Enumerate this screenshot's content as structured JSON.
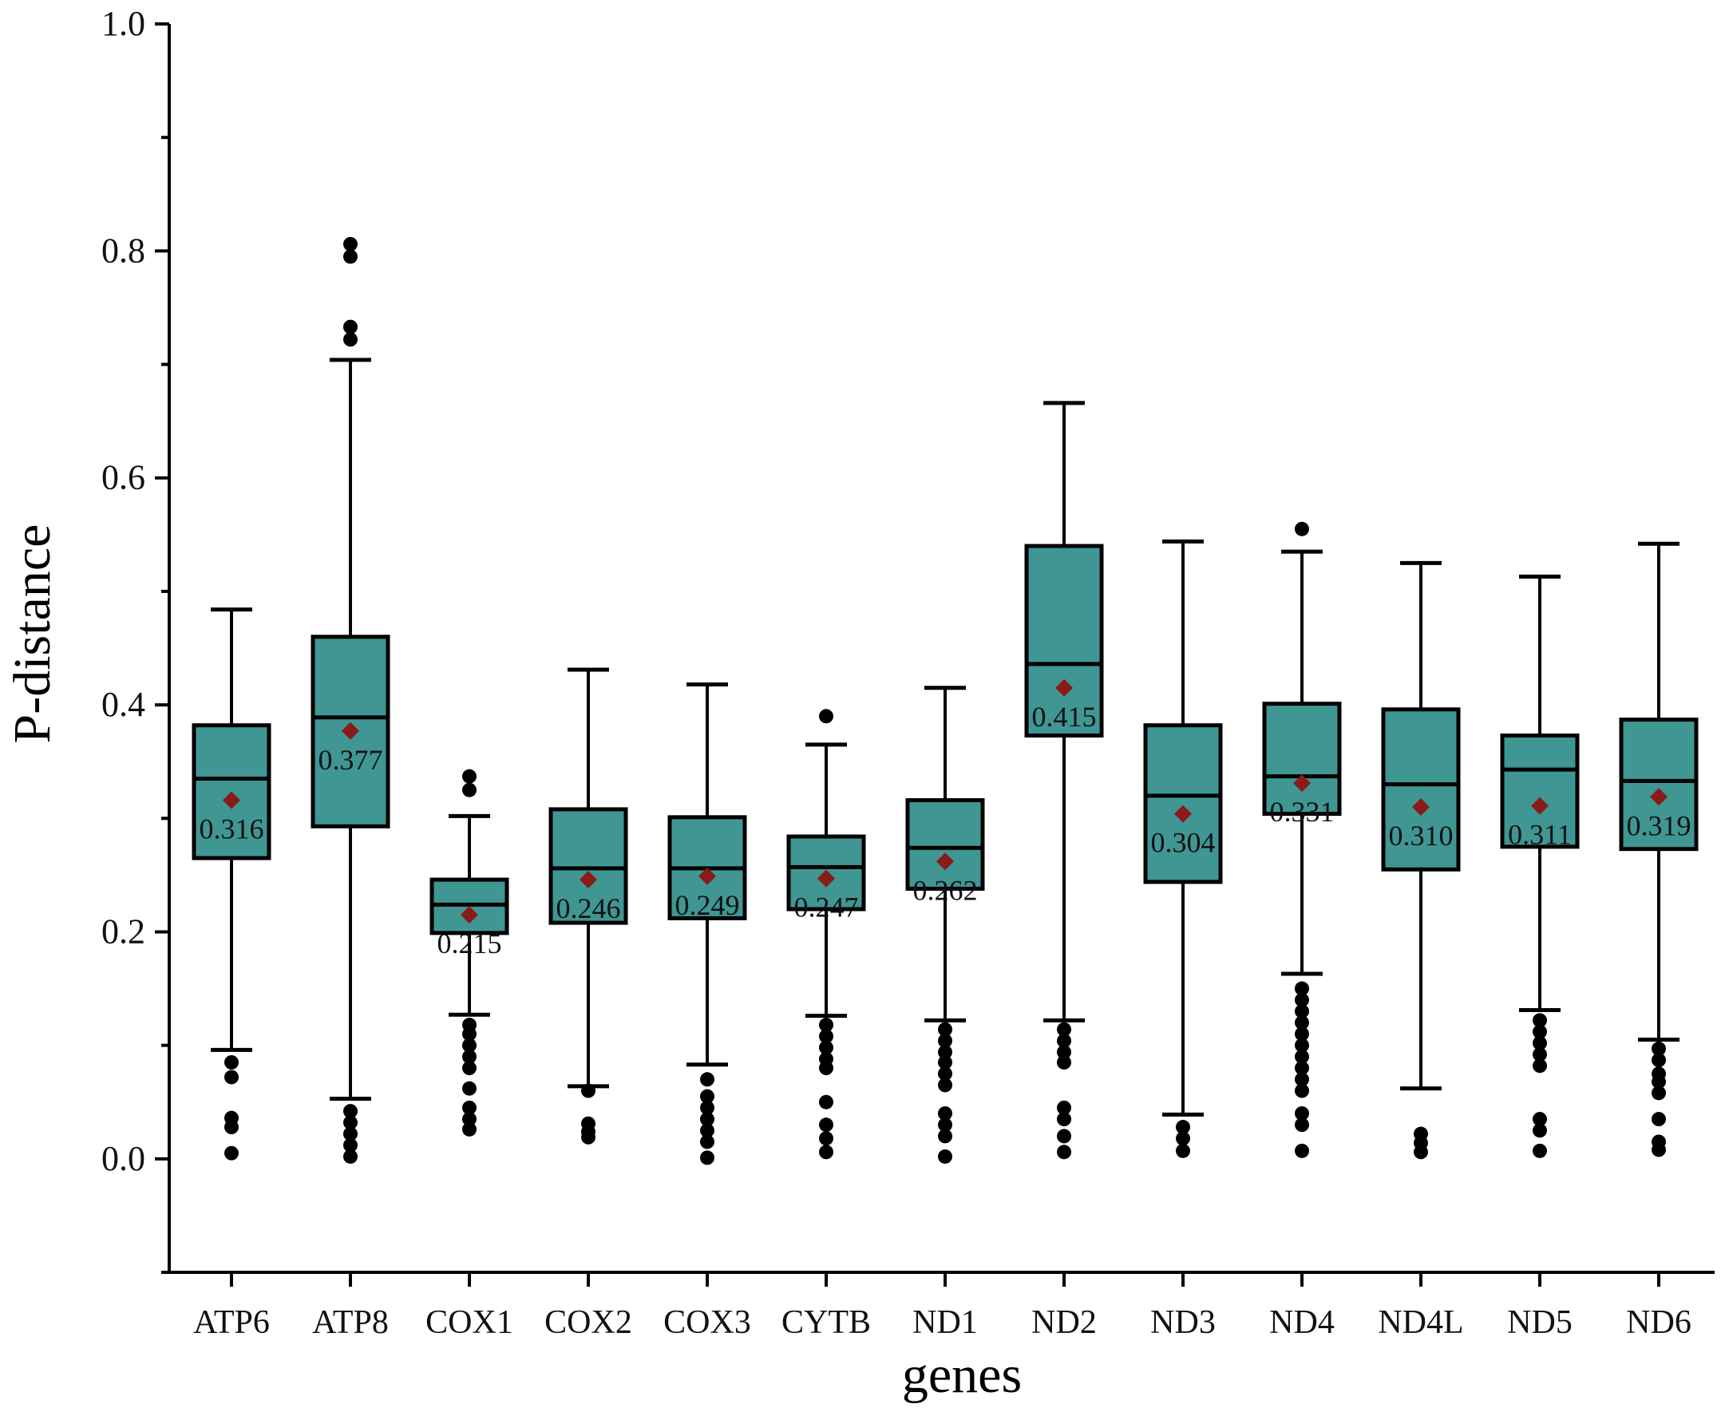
{
  "chart_data": {
    "type": "box",
    "title": "",
    "xlabel": "genes",
    "ylabel": "P-distance",
    "ylim": [
      -0.1,
      1.0
    ],
    "yticks": [
      0.0,
      0.2,
      0.4,
      0.6,
      0.8,
      1.0
    ],
    "ytick_labels": [
      "0.0",
      "0.2",
      "0.4",
      "0.6",
      "0.8",
      "1.0"
    ],
    "box_color": "#3f9693",
    "mean_color": "#8b1a1a",
    "categories": [
      "ATP6",
      "ATP8",
      "COX1",
      "COX2",
      "COX3",
      "CYTB",
      "ND1",
      "ND2",
      "ND3",
      "ND4",
      "ND4L",
      "ND5",
      "ND6"
    ],
    "boxes": [
      {
        "name": "ATP6",
        "whisker_low": 0.096,
        "q1": 0.265,
        "median": 0.335,
        "q3": 0.382,
        "whisker_high": 0.484,
        "mean": 0.316,
        "mean_label": "0.316",
        "outliers": [
          0.085,
          0.072,
          0.036,
          0.028,
          0.005
        ]
      },
      {
        "name": "ATP8",
        "whisker_low": 0.053,
        "q1": 0.293,
        "median": 0.389,
        "q3": 0.46,
        "whisker_high": 0.704,
        "mean": 0.377,
        "mean_label": "0.377",
        "outliers": [
          0.806,
          0.795,
          0.733,
          0.722,
          0.042,
          0.032,
          0.022,
          0.012,
          0.002
        ]
      },
      {
        "name": "COX1",
        "whisker_low": 0.127,
        "q1": 0.199,
        "median": 0.224,
        "q3": 0.246,
        "whisker_high": 0.302,
        "mean": 0.215,
        "mean_label": "0.215",
        "outliers": [
          0.337,
          0.325,
          0.118,
          0.11,
          0.1,
          0.09,
          0.08,
          0.062,
          0.045,
          0.035,
          0.026
        ]
      },
      {
        "name": "COX2",
        "whisker_low": 0.064,
        "q1": 0.208,
        "median": 0.256,
        "q3": 0.308,
        "whisker_high": 0.431,
        "mean": 0.246,
        "mean_label": "0.246",
        "outliers": [
          0.06,
          0.031,
          0.024,
          0.019
        ]
      },
      {
        "name": "COX3",
        "whisker_low": 0.083,
        "q1": 0.212,
        "median": 0.256,
        "q3": 0.301,
        "whisker_high": 0.418,
        "mean": 0.249,
        "mean_label": "0.249",
        "outliers": [
          0.07,
          0.055,
          0.045,
          0.035,
          0.025,
          0.015,
          0.001
        ]
      },
      {
        "name": "CYTB",
        "whisker_low": 0.126,
        "q1": 0.22,
        "median": 0.257,
        "q3": 0.284,
        "whisker_high": 0.365,
        "mean": 0.247,
        "mean_label": "0.247",
        "outliers": [
          0.39,
          0.118,
          0.108,
          0.098,
          0.088,
          0.08,
          0.05,
          0.03,
          0.018,
          0.006
        ]
      },
      {
        "name": "ND1",
        "whisker_low": 0.122,
        "q1": 0.238,
        "median": 0.274,
        "q3": 0.316,
        "whisker_high": 0.415,
        "mean": 0.262,
        "mean_label": "0.262",
        "outliers": [
          0.114,
          0.104,
          0.094,
          0.085,
          0.075,
          0.065,
          0.04,
          0.03,
          0.02,
          0.002
        ]
      },
      {
        "name": "ND2",
        "whisker_low": 0.122,
        "q1": 0.373,
        "median": 0.436,
        "q3": 0.54,
        "whisker_high": 0.666,
        "mean": 0.415,
        "mean_label": "0.415",
        "outliers": [
          0.114,
          0.104,
          0.094,
          0.085,
          0.045,
          0.035,
          0.02,
          0.006
        ]
      },
      {
        "name": "ND3",
        "whisker_low": 0.039,
        "q1": 0.244,
        "median": 0.32,
        "q3": 0.382,
        "whisker_high": 0.544,
        "mean": 0.304,
        "mean_label": "0.304",
        "outliers": [
          0.028,
          0.018,
          0.007
        ]
      },
      {
        "name": "ND4",
        "whisker_low": 0.163,
        "q1": 0.304,
        "median": 0.337,
        "q3": 0.401,
        "whisker_high": 0.535,
        "mean": 0.331,
        "mean_label": "0.331",
        "outliers": [
          0.555,
          0.15,
          0.14,
          0.13,
          0.12,
          0.11,
          0.1,
          0.09,
          0.08,
          0.07,
          0.06,
          0.04,
          0.03,
          0.007
        ]
      },
      {
        "name": "ND4L",
        "whisker_low": 0.062,
        "q1": 0.255,
        "median": 0.33,
        "q3": 0.396,
        "whisker_high": 0.525,
        "mean": 0.31,
        "mean_label": "0.310",
        "outliers": [
          0.022,
          0.014,
          0.006
        ]
      },
      {
        "name": "ND5",
        "whisker_low": 0.131,
        "q1": 0.275,
        "median": 0.343,
        "q3": 0.373,
        "whisker_high": 0.513,
        "mean": 0.311,
        "mean_label": "0.311",
        "outliers": [
          0.122,
          0.112,
          0.102,
          0.092,
          0.082,
          0.035,
          0.025,
          0.007
        ]
      },
      {
        "name": "ND6",
        "whisker_low": 0.105,
        "q1": 0.273,
        "median": 0.333,
        "q3": 0.387,
        "whisker_high": 0.542,
        "mean": 0.319,
        "mean_label": "0.319",
        "outliers": [
          0.097,
          0.087,
          0.075,
          0.068,
          0.058,
          0.035,
          0.015,
          0.008
        ]
      }
    ]
  }
}
